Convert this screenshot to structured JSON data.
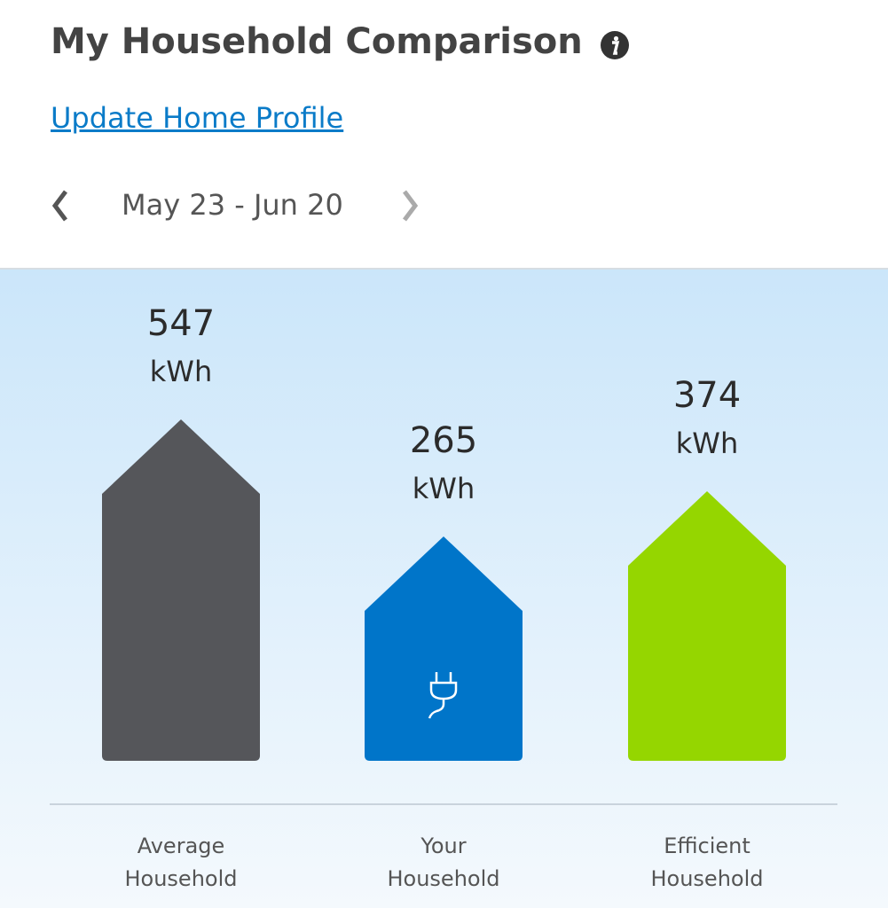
{
  "header": {
    "title": "My Household Comparison",
    "link": "Update Home Profile",
    "date_range": "May 23 - Jun 20"
  },
  "chart_data": {
    "type": "bar",
    "categories": [
      "Average Household",
      "Your Household",
      "Efficient Household"
    ],
    "values": [
      547,
      265,
      374
    ],
    "unit": "kWh",
    "colors": [
      "#55565a",
      "#0075c9",
      "#95d600"
    ]
  }
}
